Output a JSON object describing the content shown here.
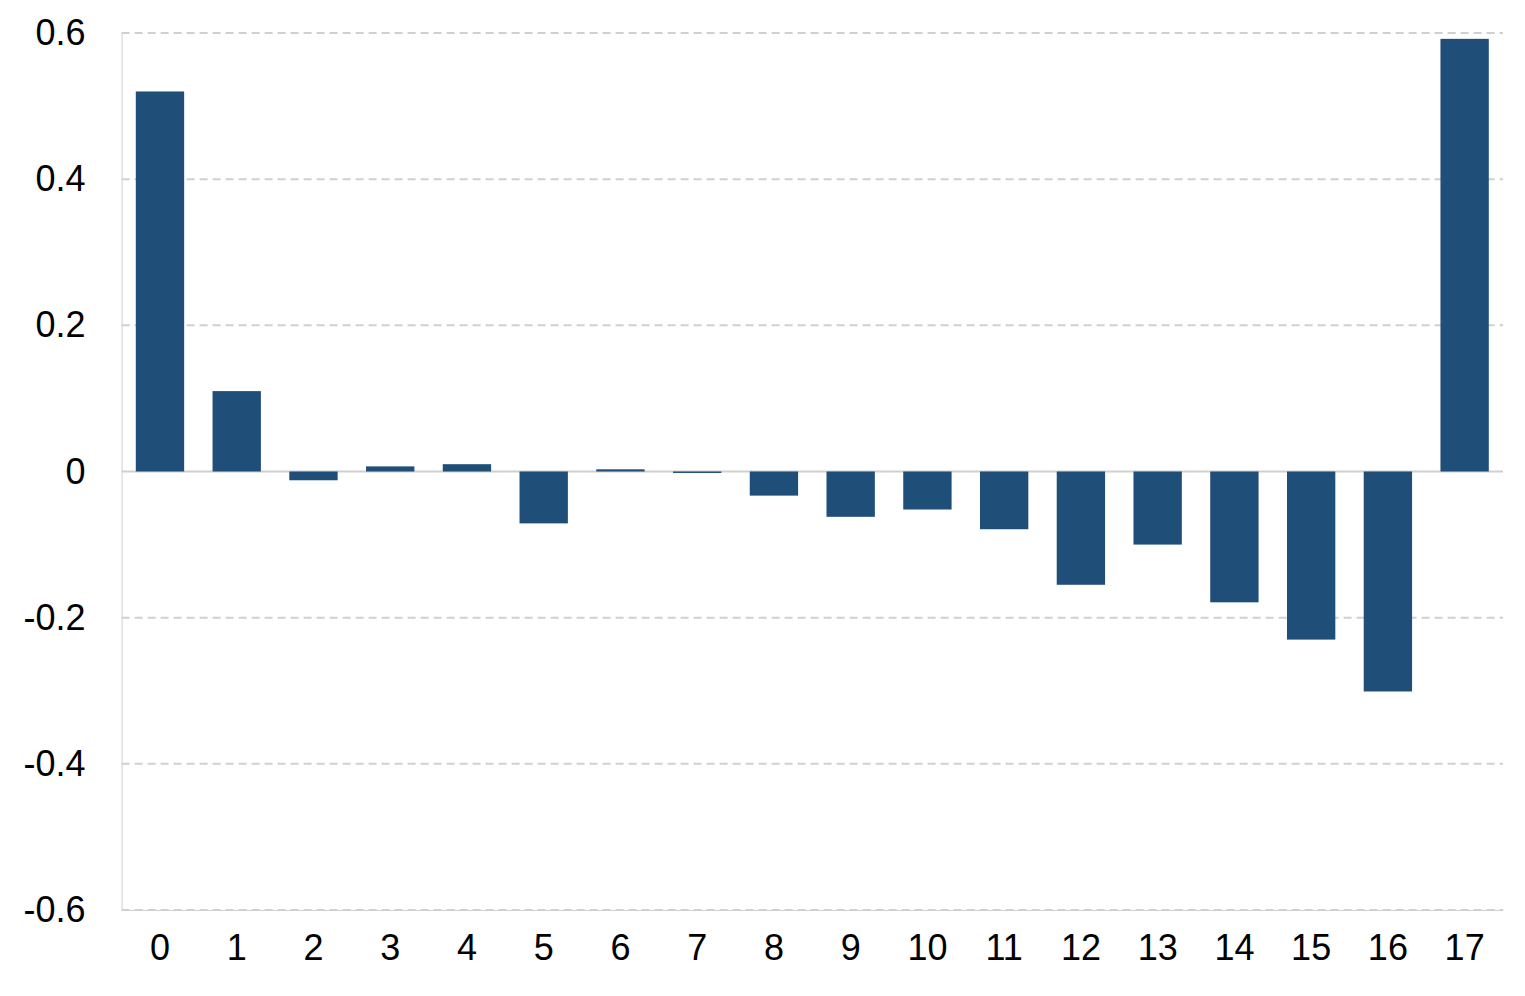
{
  "chart_data": {
    "type": "bar",
    "categories": [
      "0",
      "1",
      "2",
      "3",
      "4",
      "5",
      "6",
      "7",
      "8",
      "9",
      "10",
      "11",
      "12",
      "13",
      "14",
      "15",
      "16",
      "17"
    ],
    "values": [
      0.52,
      0.11,
      -0.012,
      0.007,
      0.01,
      -0.071,
      0.003,
      -0.002,
      -0.033,
      -0.062,
      -0.052,
      -0.079,
      -0.155,
      -0.1,
      -0.179,
      -0.23,
      -0.301,
      0.592
    ],
    "color": "#1f4e79",
    "ylim": [
      -0.6,
      0.6
    ],
    "yticks": [
      -0.6,
      -0.4,
      -0.2,
      0,
      0.2,
      0.4,
      0.6
    ],
    "grid": true
  }
}
